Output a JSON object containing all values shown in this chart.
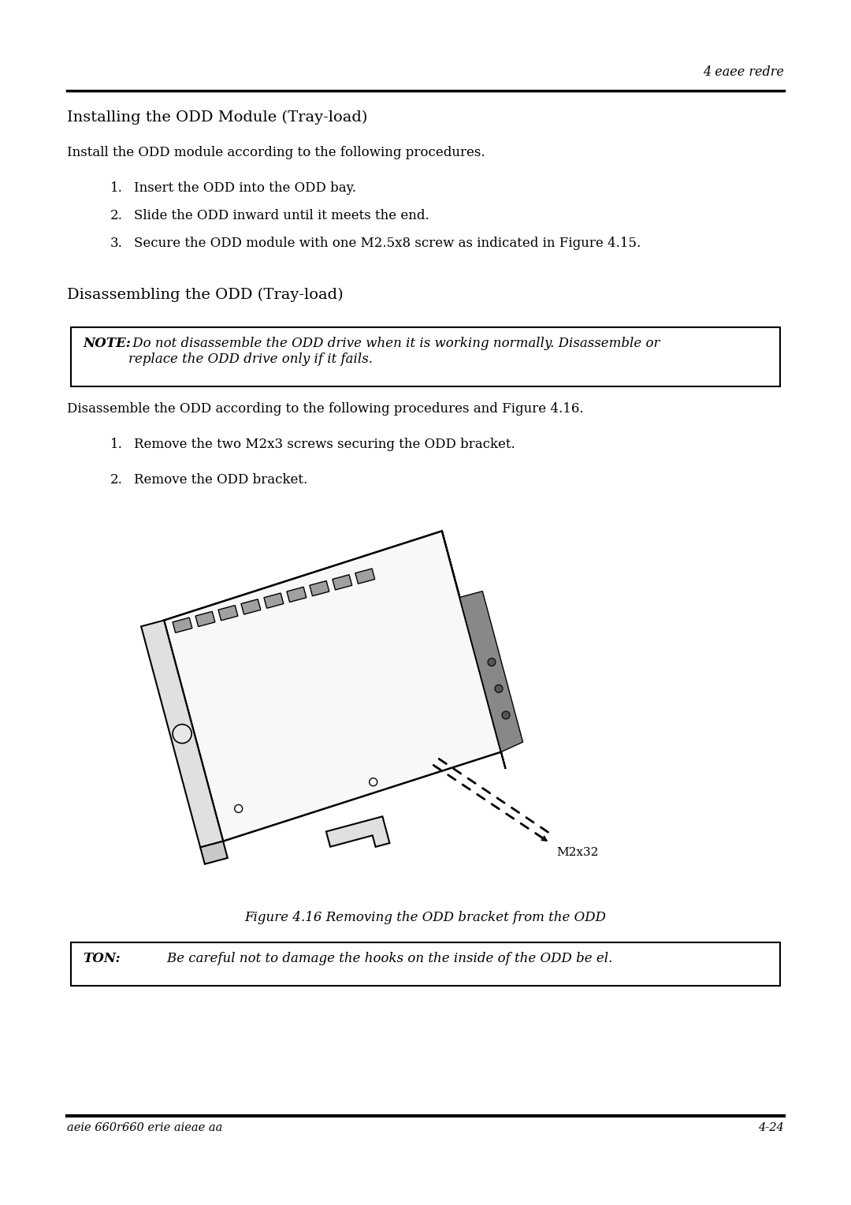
{
  "bg_color": "#ffffff",
  "header_text": "4 eaee redre",
  "section1_title": "Installing the ODD Module (Tray-load)",
  "section1_intro": "Install the ODD module according to the following procedures.",
  "section1_items": [
    "Insert the ODD into the ODD bay.",
    "Slide the ODD inward until it meets the end.",
    "Secure the ODD module with one M2.5x8 screw as indicated in Figure 4.15."
  ],
  "section2_title": "Disassembling the ODD (Tray-load)",
  "note_bold": "NOTE:",
  "note_text": " Do not disassemble the ODD drive when it is working normally. Disassemble or\nreplace the ODD drive only if it fails.",
  "section2_intro": "Disassemble the ODD according to the following procedures and Figure 4.16.",
  "section2_items": [
    "Remove the two M2x3 screws securing the ODD bracket.",
    "Remove the ODD bracket."
  ],
  "figure_caption": "Figure 4.16 Removing the ODD bracket from the ODD",
  "screw_label": "M2x32",
  "caution_bold": "TON:",
  "caution_text": "        Be careful not to damage the hooks on the inside of the ODD be el.",
  "footer_left": "aeie 660r660 erie aieae aa",
  "footer_right": "4-24"
}
